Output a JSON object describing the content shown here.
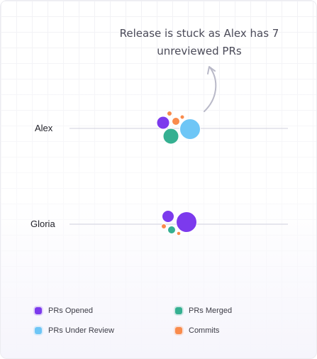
{
  "annotation": {
    "line1": "Release is stuck as Alex has 7",
    "line2": "unreviewed PRs"
  },
  "people": [
    {
      "name": "Alex",
      "bubbles": [
        {
          "metric": "PRs Under Review",
          "color": "#6ec6f6"
        },
        {
          "metric": "PRs Opened",
          "color": "#7c3aed"
        },
        {
          "metric": "PRs Merged",
          "color": "#35b091"
        },
        {
          "metric": "Commits",
          "color": "#f98b4c"
        },
        {
          "metric": "Commits",
          "color": "#f98b4c"
        },
        {
          "metric": "Commits",
          "color": "#f98b4c"
        }
      ]
    },
    {
      "name": "Gloria",
      "bubbles": [
        {
          "metric": "PRs Opened",
          "color": "#7c3aed"
        },
        {
          "metric": "PRs Opened",
          "color": "#7c3aed"
        },
        {
          "metric": "PRs Merged",
          "color": "#35b091"
        },
        {
          "metric": "Commits",
          "color": "#f98b4c"
        },
        {
          "metric": "Commits",
          "color": "#f98b4c"
        }
      ]
    }
  ],
  "legend": [
    {
      "label": "PRs Opened",
      "color": "#7c3aed"
    },
    {
      "label": "PRs Merged",
      "color": "#35b091"
    },
    {
      "label": "PRs Under Review",
      "color": "#6ec6f6"
    },
    {
      "label": "Commits",
      "color": "#f98b4c"
    }
  ],
  "colors": {
    "axis_line": "#cfcfdc",
    "arrow": "#b9b9c8"
  }
}
